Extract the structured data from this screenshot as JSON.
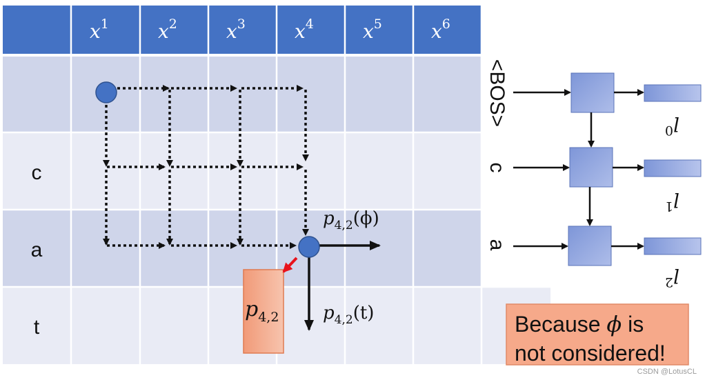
{
  "columns": [
    "x",
    "x",
    "x",
    "x",
    "x",
    "x"
  ],
  "column_superscripts": [
    "1",
    "2",
    "3",
    "4",
    "5",
    "6"
  ],
  "rows": [
    "",
    "c",
    "a",
    "t"
  ],
  "labels": {
    "p_phi_base": "p",
    "p_phi_sub": "4,2",
    "p_phi_arg": "(ϕ)",
    "p_t_base": "p",
    "p_t_sub": "4,2",
    "p_t_arg": "(t)",
    "box_base": "p",
    "box_sub": "4,2"
  },
  "decoder": {
    "inputs": [
      "<BOS>",
      "c",
      "a"
    ],
    "outputs": [
      "l",
      "l",
      "l"
    ],
    "output_superscripts": [
      "0",
      "1",
      "2"
    ]
  },
  "note": {
    "line1_prefix": "Because ",
    "line1_symbol": "ϕ",
    "line1_suffix": " is",
    "line2": "not considered!"
  },
  "watermark": "CSDN @LotusCL",
  "colors": {
    "header": "#4472c4",
    "row_dark": "#cfd5ea",
    "row_light": "#e9ebf5",
    "node": "#4472c4",
    "highlight_box": "#f4a582",
    "note_box": "#f6a98a",
    "red_arrow": "#e8121b",
    "decoder_cell": "#8fa3dd"
  }
}
